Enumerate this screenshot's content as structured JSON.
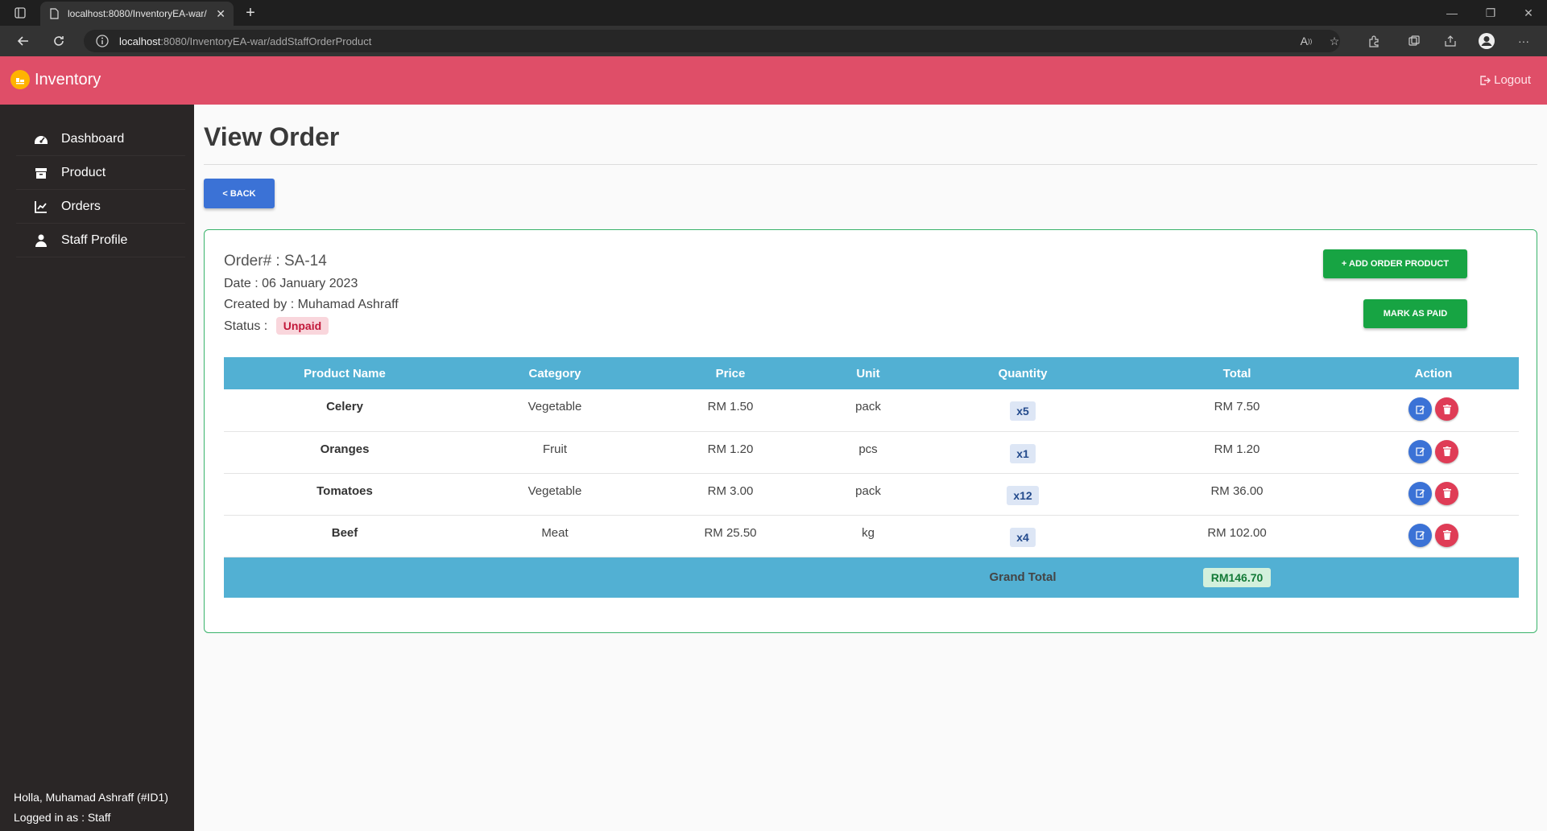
{
  "browser": {
    "tab_title": "localhost:8080/InventoryEA-war/",
    "url_host": "localhost",
    "url_path": ":8080/InventoryEA-war/addStaffOrderProduct"
  },
  "header": {
    "brand": "Inventory",
    "logout_label": "Logout"
  },
  "sidebar": {
    "items": [
      {
        "label": "Dashboard",
        "icon": "dashboard-icon"
      },
      {
        "label": "Product",
        "icon": "box-icon"
      },
      {
        "label": "Orders",
        "icon": "chart-icon"
      },
      {
        "label": "Staff Profile",
        "icon": "user-icon"
      }
    ],
    "greeting": "Holla, Muhamad Ashraff (#ID1)",
    "role": "Logged in as : Staff"
  },
  "page": {
    "title": "View Order",
    "back_label": "< BACK"
  },
  "order": {
    "number": "Order# : SA-14",
    "date": "Date : 06 January 2023",
    "created_by": "Created by : Muhamad Ashraff",
    "status_label": "Status :",
    "status": "Unpaid",
    "add_product_label": "+ ADD ORDER PRODUCT",
    "mark_paid_label": "MARK AS PAID"
  },
  "table": {
    "headers": [
      "Product Name",
      "Category",
      "Price",
      "Unit",
      "Quantity",
      "Total",
      "Action"
    ],
    "rows": [
      {
        "name": "Celery",
        "category": "Vegetable",
        "price": "RM 1.50",
        "unit": "pack",
        "qty": "x5",
        "total": "RM 7.50"
      },
      {
        "name": "Oranges",
        "category": "Fruit",
        "price": "RM 1.20",
        "unit": "pcs",
        "qty": "x1",
        "total": "RM 1.20"
      },
      {
        "name": "Tomatoes",
        "category": "Vegetable",
        "price": "RM 3.00",
        "unit": "pack",
        "qty": "x12",
        "total": "RM 36.00"
      },
      {
        "name": "Beef",
        "category": "Meat",
        "price": "RM 25.50",
        "unit": "kg",
        "qty": "x4",
        "total": "RM 102.00"
      }
    ],
    "grand_total_label": "Grand Total",
    "grand_total": "RM146.70"
  },
  "colors": {
    "header": "#df4e68",
    "sidebar": "#2a2626",
    "table_header": "#52b0d3",
    "primary": "#3b72d6",
    "success": "#17a443",
    "danger": "#df3c56"
  }
}
